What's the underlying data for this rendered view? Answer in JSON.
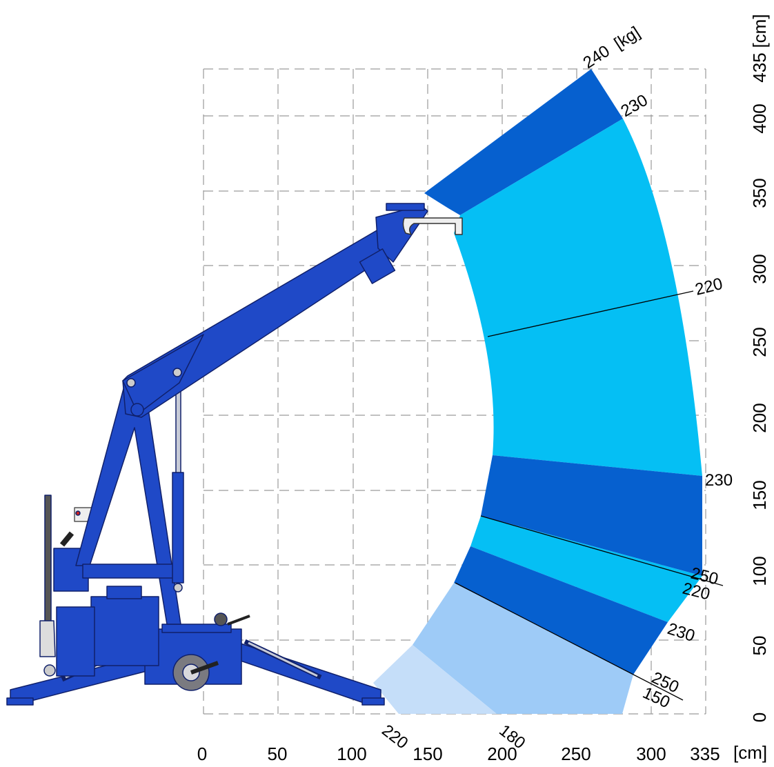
{
  "x_axis": {
    "ticks": [
      "0",
      "50",
      "100",
      "150",
      "200",
      "250",
      "300",
      "335"
    ],
    "unit": "[cm]"
  },
  "y_axis": {
    "ticks": [
      "0",
      "50",
      "100",
      "150",
      "200",
      "250",
      "300",
      "350",
      "400",
      "435"
    ],
    "unit": "[cm]"
  },
  "load_labels": {
    "top": "240",
    "top_unit": "[kg]",
    "l230_top": "230",
    "l220_right": "220",
    "l230_mid": "230",
    "l250_a": "250",
    "l220_b": "220",
    "l230_low": "230",
    "l250_c": "250",
    "l150": "150",
    "l220_bottom": "220",
    "l180": "180"
  },
  "colors": {
    "dark_blue": "#0660CF",
    "cyan": "#05BFF4",
    "light_blue": "#9ECBF7",
    "pale_blue": "#C5DEF9",
    "crane_blue": "#1F49C7",
    "grid": "#9a9a9a"
  }
}
